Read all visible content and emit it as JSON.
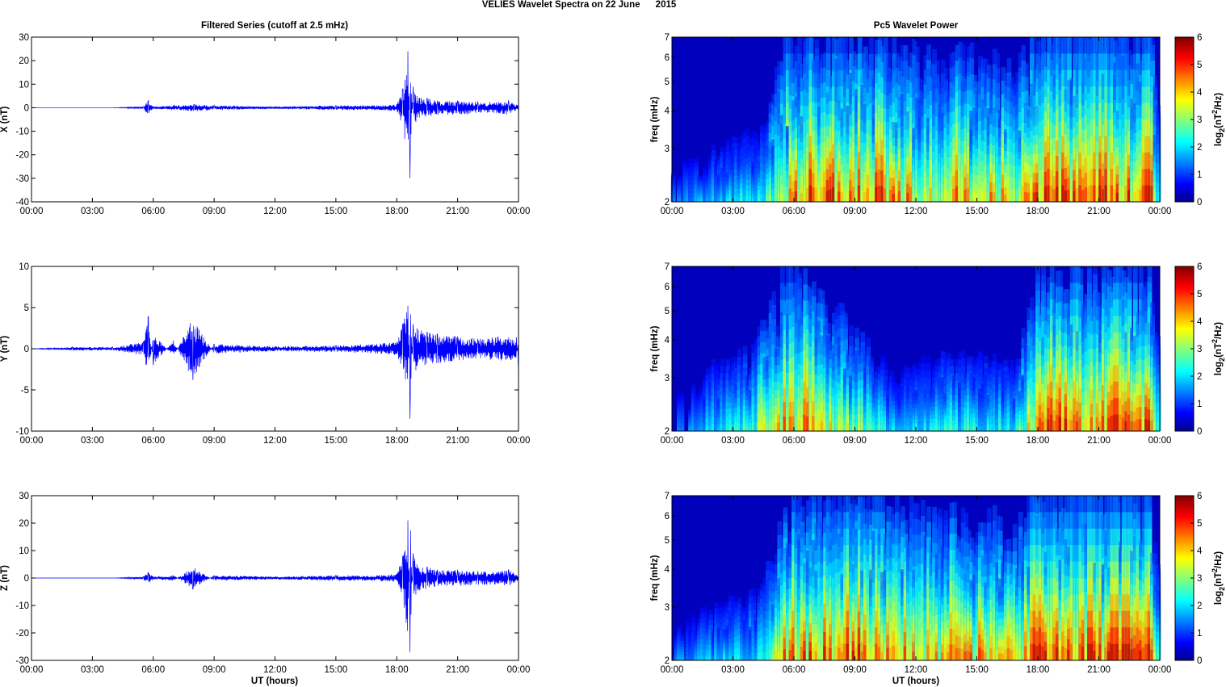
{
  "suptitle": "VELIES Wavelet Spectra on 22 June      2015",
  "left_title": "Filtered Series (cutoff at 2.5 mHz)",
  "right_title": "Pc5 Wavelet Power",
  "xlabel": "UT (hours)",
  "colorbar_label": "log2(nT2/Hz)",
  "colorbar_ticks": [
    "0",
    "1",
    "2",
    "3",
    "4",
    "5",
    "6"
  ],
  "freq_ticks": [
    "2",
    "3",
    "4",
    "5",
    "6",
    "7"
  ],
  "colormap": [
    "#00008f",
    "#0000ff",
    "#00ffff",
    "#ffff00",
    "#ff0000",
    "#800000"
  ],
  "line_color": "#0000ff",
  "chart_data": [
    {
      "type": "line",
      "component": "X",
      "ylabel": "X (nT)",
      "ylim": [
        -40,
        30
      ],
      "yticks": [
        "-40",
        "-30",
        "-20",
        "-10",
        "0",
        "10",
        "20",
        "30"
      ],
      "xticks": [
        "00:00",
        "03:00",
        "06:00",
        "09:00",
        "12:00",
        "15:00",
        "18:00",
        "21:00",
        "00:00"
      ],
      "xlim_hours": [
        0,
        24
      ],
      "series": [
        {
          "x": [
            0,
            2,
            4,
            5.5,
            5.75,
            6,
            7,
            8,
            9,
            12,
            15,
            17,
            18,
            18.3,
            18.55,
            18.65,
            18.8,
            19,
            19.5,
            20,
            21,
            22,
            23,
            23.5,
            24
          ],
          "y": [
            0,
            0,
            0,
            0.5,
            3,
            0.5,
            1,
            1.5,
            1,
            0.5,
            1,
            1,
            1.5,
            8,
            24,
            -30,
            9,
            5,
            4,
            3,
            3,
            2.5,
            2.5,
            3,
            1
          ]
        }
      ]
    },
    {
      "type": "line",
      "component": "Y",
      "ylabel": "Y (nT)",
      "ylim": [
        -10,
        10
      ],
      "yticks": [
        "-10",
        "-5",
        "0",
        "5",
        "10"
      ],
      "xticks": [
        "00:00",
        "03:00",
        "06:00",
        "09:00",
        "12:00",
        "15:00",
        "18:00",
        "21:00",
        "00:00"
      ],
      "xlim_hours": [
        0,
        24
      ],
      "series": [
        {
          "x": [
            0,
            2,
            4,
            5.5,
            5.75,
            6,
            7,
            7.95,
            9,
            12,
            15,
            17,
            18,
            18.3,
            18.55,
            18.65,
            18.8,
            19,
            19.5,
            20,
            21,
            22,
            23,
            23.9,
            24
          ],
          "y": [
            0,
            0.2,
            0.2,
            0.8,
            3.9,
            -2,
            1,
            -3.8,
            0.6,
            0.3,
            0.4,
            0.6,
            0.8,
            3,
            5.2,
            -8.5,
            3,
            2.5,
            2,
            1.8,
            1.5,
            1.2,
            1.5,
            1.4,
            -3
          ]
        }
      ]
    },
    {
      "type": "line",
      "component": "Z",
      "ylabel": "Z (nT)",
      "ylim": [
        -30,
        30
      ],
      "yticks": [
        "-30",
        "-20",
        "-10",
        "0",
        "10",
        "20",
        "30"
      ],
      "xticks": [
        "00:00",
        "03:00",
        "06:00",
        "09:00",
        "12:00",
        "15:00",
        "18:00",
        "21:00",
        "00:00"
      ],
      "xlim_hours": [
        0,
        24
      ],
      "series": [
        {
          "x": [
            0,
            2,
            4,
            5.5,
            5.75,
            6,
            7,
            7.95,
            9,
            12,
            15,
            17,
            18,
            18.3,
            18.55,
            18.65,
            18.8,
            19,
            19.5,
            20,
            21,
            22,
            23,
            23.5,
            24
          ],
          "y": [
            0,
            0,
            0,
            0.5,
            2,
            0.5,
            1,
            -4,
            1,
            0.5,
            1,
            1,
            1.5,
            8,
            21,
            -27,
            9,
            5,
            4,
            3,
            3,
            2.5,
            2.5,
            3,
            1
          ]
        }
      ]
    },
    {
      "type": "heatmap",
      "component": "X",
      "ylabel": "freq (mHz)",
      "y_scale": "log",
      "ylim_mHz": [
        2,
        7
      ],
      "clim": [
        0,
        6
      ],
      "xlim_hours": [
        0,
        24
      ],
      "activity_hours": [
        [
          0,
          0.2
        ],
        [
          4.5,
          0.4
        ],
        [
          5.5,
          0.8
        ],
        [
          7,
          0.95
        ],
        [
          9,
          0.95
        ],
        [
          13,
          0.75
        ],
        [
          15,
          0.8
        ],
        [
          17,
          0.7
        ],
        [
          18,
          1.0
        ],
        [
          23.5,
          1.0
        ],
        [
          24,
          0.4
        ]
      ]
    },
    {
      "type": "heatmap",
      "component": "Y",
      "ylabel": "freq (mHz)",
      "y_scale": "log",
      "ylim_mHz": [
        2,
        7
      ],
      "clim": [
        0,
        6
      ],
      "xlim_hours": [
        0,
        24
      ],
      "activity_hours": [
        [
          0,
          0.15
        ],
        [
          2,
          0.35
        ],
        [
          4,
          0.45
        ],
        [
          5.5,
          0.85
        ],
        [
          7,
          0.8
        ],
        [
          9,
          0.55
        ],
        [
          11,
          0.3
        ],
        [
          13,
          0.4
        ],
        [
          15,
          0.4
        ],
        [
          17,
          0.35
        ],
        [
          18,
          0.95
        ],
        [
          23.5,
          0.9
        ],
        [
          24,
          0.4
        ]
      ]
    },
    {
      "type": "heatmap",
      "component": "Z",
      "ylabel": "freq (mHz)",
      "y_scale": "log",
      "ylim_mHz": [
        2,
        7
      ],
      "clim": [
        0,
        6
      ],
      "xlim_hours": [
        0,
        24
      ],
      "activity_hours": [
        [
          0,
          0.2
        ],
        [
          4.5,
          0.4
        ],
        [
          5.5,
          0.8
        ],
        [
          7,
          0.95
        ],
        [
          9,
          0.95
        ],
        [
          13,
          0.75
        ],
        [
          15,
          0.8
        ],
        [
          17,
          0.7
        ],
        [
          18,
          1.0
        ],
        [
          23.5,
          1.0
        ],
        [
          24,
          0.4
        ]
      ]
    }
  ]
}
